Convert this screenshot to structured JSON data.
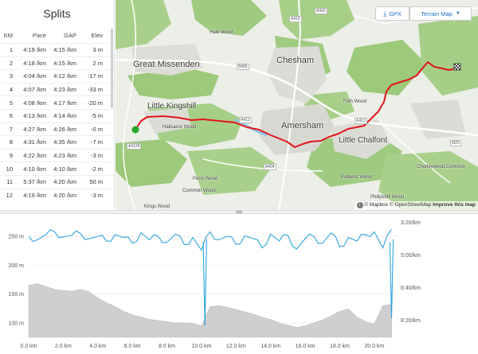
{
  "splits": {
    "title": "Splits",
    "headers": {
      "km": "KM",
      "pace": "Pace",
      "gap": "GAP",
      "elev": "Elev"
    },
    "rows": [
      {
        "km": "1",
        "pace": "4:19 /km",
        "gap": "4:15 /km",
        "elev": "3 m"
      },
      {
        "km": "2",
        "pace": "4:18 /km",
        "gap": "4:15 /km",
        "elev": "2 m"
      },
      {
        "km": "3",
        "pace": "4:04 /km",
        "gap": "4:12 /km",
        "elev": "-17 m"
      },
      {
        "km": "4",
        "pace": "4:07 /km",
        "gap": "4:23 /km",
        "elev": "-33 m"
      },
      {
        "km": "5",
        "pace": "4:08 /km",
        "gap": "4:17 /km",
        "elev": "-20 m"
      },
      {
        "km": "6",
        "pace": "4:13 /km",
        "gap": "4:14 /km",
        "elev": "-5 m"
      },
      {
        "km": "7",
        "pace": "4:27 /km",
        "gap": "4:26 /km",
        "elev": "-0 m"
      },
      {
        "km": "8",
        "pace": "4:31 /km",
        "gap": "4:35 /km",
        "elev": "-7 m"
      },
      {
        "km": "9",
        "pace": "4:22 /km",
        "gap": "4:23 /km",
        "elev": "-3 m"
      },
      {
        "km": "10",
        "pace": "4:10 /km",
        "gap": "4:10 /km",
        "elev": "-2 m"
      },
      {
        "km": "11",
        "pace": "5:37 /km",
        "gap": "4:20 /km",
        "elev": "50 m"
      },
      {
        "km": "12",
        "pace": "4:19 /km",
        "gap": "4:20 /km",
        "elev": "-3 m"
      }
    ]
  },
  "map": {
    "gpx_label": "GPX",
    "terrain_label": "Terrain Map",
    "attribution": {
      "mapbox": "© Mapbox",
      "osm": "© OpenStreetMap",
      "improve": "Improve this map"
    },
    "places_big": [
      "Great Missenden",
      "Chesham",
      "Amersham",
      "Little Chalfont",
      "Little Kingshill"
    ],
    "places_small": [
      "Hale Wood",
      "Frith Wood",
      "Hailsacre Wood",
      "Penn Wood",
      "Common Wood",
      "Pollards Wood",
      "Chorleywood Common",
      "Philipshill Wood",
      "Kings Wood"
    ],
    "roads": [
      "A416",
      "A416",
      "B485",
      "A413",
      "A404",
      "A4128",
      "M25",
      "A413"
    ],
    "colors": {
      "route": "#e3141b",
      "start": "#22a822",
      "forest": "#9cc97a",
      "urban": "#dcdcd6"
    }
  },
  "elevation": {
    "left_axis": [
      "250 m",
      "200 m",
      "150 m",
      "100 m"
    ],
    "right_axis": [
      "3:20/km",
      "5:00/km",
      "6:40/km",
      "8:20/km"
    ],
    "x_axis": [
      "0.0 km",
      "2.0 km",
      "4.0 km",
      "6.0 km",
      "8.0 km",
      "10.0 km",
      "12.0 km",
      "14.0 km",
      "16.0 km",
      "18.0 km",
      "20.0 km"
    ]
  },
  "chart_data": {
    "type": "area",
    "x": [
      0,
      0.5,
      1,
      1.5,
      2,
      2.5,
      3,
      3.5,
      4,
      4.5,
      5,
      5.5,
      6,
      6.5,
      7,
      7.5,
      8,
      8.5,
      9,
      9.5,
      10,
      10.5,
      11,
      11.5,
      12,
      12.5,
      13,
      13.5,
      14,
      14.5,
      15,
      15.5,
      16,
      16.5,
      17,
      17.5,
      18,
      18.5,
      19,
      19.5,
      20,
      20.5,
      21
    ],
    "series": [
      {
        "values": [
          165,
          168,
          163,
          158,
          156,
          155,
          158,
          154,
          143,
          135,
          128,
          120,
          114,
          110,
          106,
          104,
          102,
          100,
          100,
          99,
          95,
          128,
          130,
          127,
          123,
          119,
          115,
          110,
          106,
          100,
          96,
          92,
          95,
          100,
          105,
          112,
          120,
          124,
          110,
          102,
          98,
          130,
          132
        ]
      },
      {
        "values": [
          250,
          244,
          253,
          258,
          249,
          252,
          255,
          246,
          250,
          242,
          253,
          248,
          238,
          256,
          244,
          250,
          240,
          254,
          236,
          248,
          226,
          258,
          244,
          250,
          236,
          251,
          246,
          230,
          254,
          242,
          252,
          228,
          246,
          250,
          238,
          256,
          232,
          248,
          242,
          253,
          258,
          230,
          262
        ]
      }
    ],
    "ylim_left": [
      75,
      275
    ],
    "xlim": [
      0,
      21.3
    ]
  }
}
